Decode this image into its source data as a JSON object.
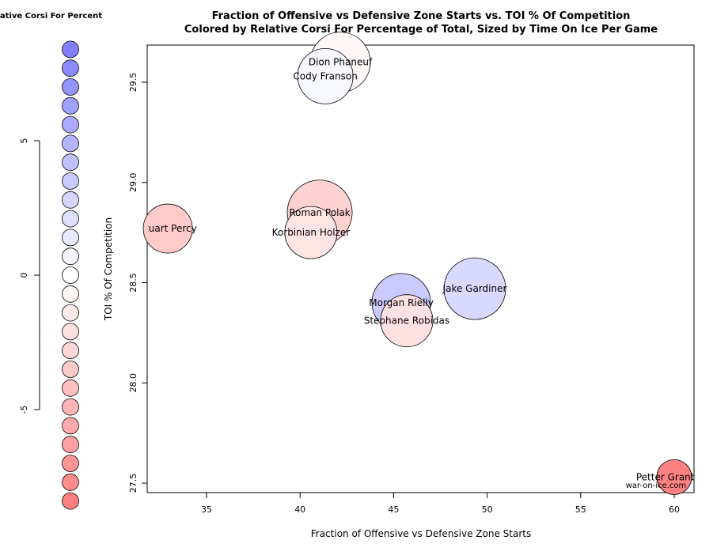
{
  "chart_data": {
    "type": "scatter",
    "title": "Fraction of Offensive vs Defensive Zone Starts vs. TOI % Of Competition",
    "subtitle": "Colored by Relative Corsi For Percentage of Total, Sized by Time On Ice Per Game",
    "xlabel": "Fraction of Offensive vs Defensive Zone Starts",
    "ylabel": "TOI % Of Competition",
    "xlim": [
      31.9,
      61.1
    ],
    "ylim": [
      27.45,
      29.69
    ],
    "xticks": [
      "35",
      "40",
      "45",
      "50",
      "55",
      "60"
    ],
    "yticks": [
      "27.5",
      "28.0",
      "28.5",
      "29.0",
      "29.5"
    ],
    "grid": false,
    "watermark": "war-on-ice.com",
    "points": [
      {
        "name": "Dion Phaneuf",
        "x": 42.15,
        "y": 29.6,
        "rel_cf": -0.5,
        "toi": 19.0
      },
      {
        "name": "Cody Franson",
        "x": 41.35,
        "y": 29.53,
        "rel_cf": 0.5,
        "toi": 17.5
      },
      {
        "name": "Stuart Percy",
        "x": 32.93,
        "y": 28.77,
        "rel_cf": -3.5,
        "toi": 15.5
      },
      {
        "name": "Roman Polak",
        "x": 41.05,
        "y": 28.85,
        "rel_cf": -3.0,
        "toi": 20.5
      },
      {
        "name": "Korbinian Holzer",
        "x": 40.58,
        "y": 28.75,
        "rel_cf": -1.8,
        "toi": 16.5
      },
      {
        "name": "Morgan Rielly",
        "x": 45.41,
        "y": 28.4,
        "rel_cf": 3.5,
        "toi": 18.5
      },
      {
        "name": "Stephane Robidas",
        "x": 45.7,
        "y": 28.31,
        "rel_cf": -2.0,
        "toi": 16.5
      },
      {
        "name": "Jake Gardiner",
        "x": 49.34,
        "y": 28.47,
        "rel_cf": 2.5,
        "toi": 19.5
      },
      {
        "name": "Petter Granberg",
        "x": 60.0,
        "y": 27.53,
        "rel_cf": -8.3,
        "toi": 11.0
      }
    ],
    "legend": {
      "title": "Relative Corsi For Percent",
      "placement": "left",
      "range": [
        -8.4,
        8.4
      ],
      "ticks": [
        "5",
        "0",
        "-5"
      ],
      "colors": {
        "high": "#8080ff",
        "mid": "#ffffff",
        "low": "#ff8080"
      },
      "steps": 25
    }
  }
}
